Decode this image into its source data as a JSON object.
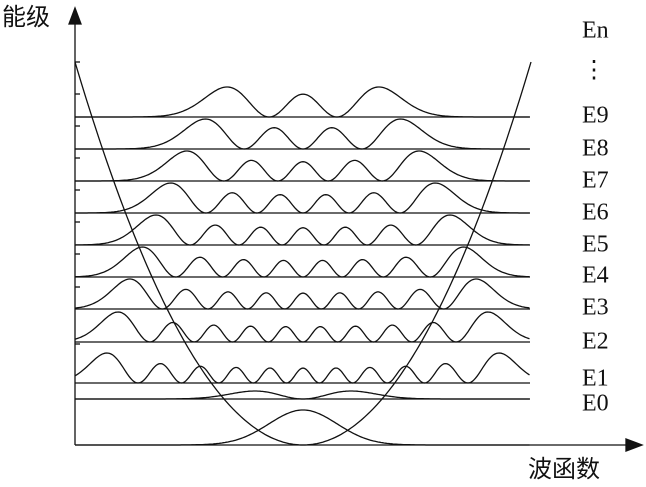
{
  "axes": {
    "y_label": "能级",
    "x_label": "波函数"
  },
  "levels": [
    "En",
    "⋮",
    "E9",
    "E8",
    "E7",
    "E6",
    "E5",
    "E4",
    "E3",
    "E2",
    "E1",
    "E0"
  ]
}
